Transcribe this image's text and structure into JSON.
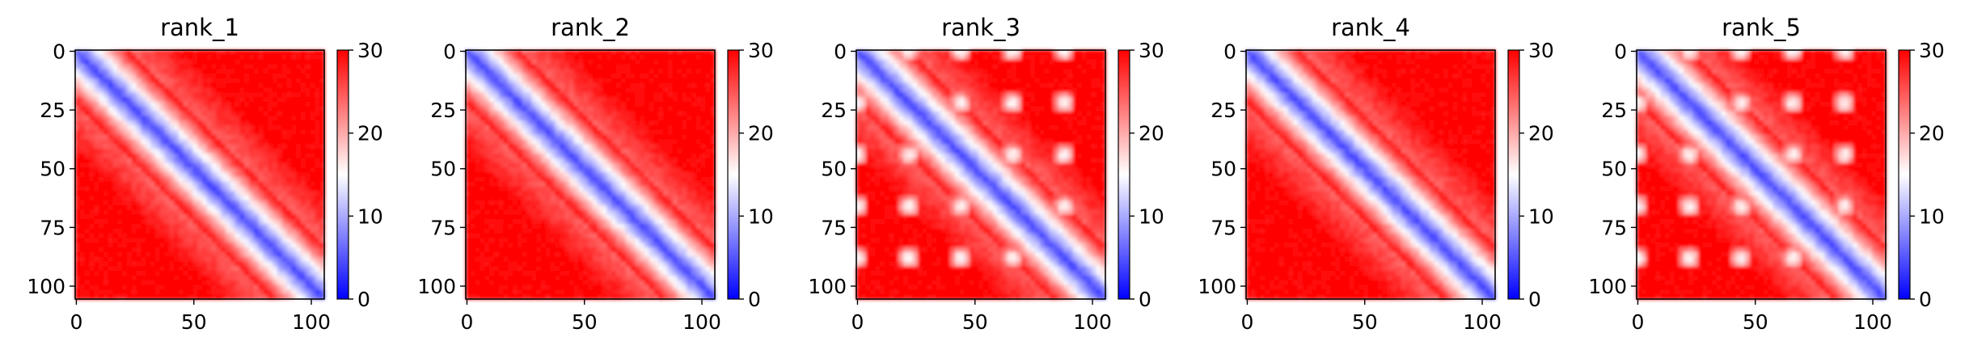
{
  "chart_data": [
    {
      "type": "heatmap",
      "title": "rank_1",
      "matrix_size": 106,
      "x_ticks": [
        0,
        50,
        100
      ],
      "y_ticks": [
        0,
        25,
        50,
        75,
        100
      ],
      "colorbar": {
        "range": [
          0,
          30
        ],
        "ticks": [
          0,
          10,
          20,
          30
        ],
        "colors": [
          "#0000ff",
          "#ffffff",
          "#ff0000"
        ]
      },
      "pattern": {
        "diagonal_band": true,
        "offdiagonal_blobs": false
      }
    },
    {
      "type": "heatmap",
      "title": "rank_2",
      "matrix_size": 106,
      "x_ticks": [
        0,
        50,
        100
      ],
      "y_ticks": [
        0,
        25,
        50,
        75,
        100
      ],
      "colorbar": {
        "range": [
          0,
          30
        ],
        "ticks": [
          0,
          10,
          20,
          30
        ],
        "colors": [
          "#0000ff",
          "#ffffff",
          "#ff0000"
        ]
      },
      "pattern": {
        "diagonal_band": true,
        "offdiagonal_blobs": false
      }
    },
    {
      "type": "heatmap",
      "title": "rank_3",
      "matrix_size": 106,
      "x_ticks": [
        0,
        50,
        100
      ],
      "y_ticks": [
        0,
        25,
        50,
        75,
        100
      ],
      "colorbar": {
        "range": [
          0,
          30
        ],
        "ticks": [
          0,
          10,
          20,
          30
        ],
        "colors": [
          "#0000ff",
          "#ffffff",
          "#ff0000"
        ]
      },
      "pattern": {
        "diagonal_band": true,
        "offdiagonal_blobs": true
      }
    },
    {
      "type": "heatmap",
      "title": "rank_4",
      "matrix_size": 106,
      "x_ticks": [
        0,
        50,
        100
      ],
      "y_ticks": [
        0,
        25,
        50,
        75,
        100
      ],
      "colorbar": {
        "range": [
          0,
          30
        ],
        "ticks": [
          0,
          10,
          20,
          30
        ],
        "colors": [
          "#0000ff",
          "#ffffff",
          "#ff0000"
        ]
      },
      "pattern": {
        "diagonal_band": true,
        "offdiagonal_blobs": false
      }
    },
    {
      "type": "heatmap",
      "title": "rank_5",
      "matrix_size": 106,
      "x_ticks": [
        0,
        50,
        100
      ],
      "y_ticks": [
        0,
        25,
        50,
        75,
        100
      ],
      "colorbar": {
        "range": [
          0,
          30
        ],
        "ticks": [
          0,
          10,
          20,
          30
        ],
        "colors": [
          "#0000ff",
          "#ffffff",
          "#ff0000"
        ]
      },
      "pattern": {
        "diagonal_band": true,
        "offdiagonal_blobs": true
      }
    }
  ]
}
